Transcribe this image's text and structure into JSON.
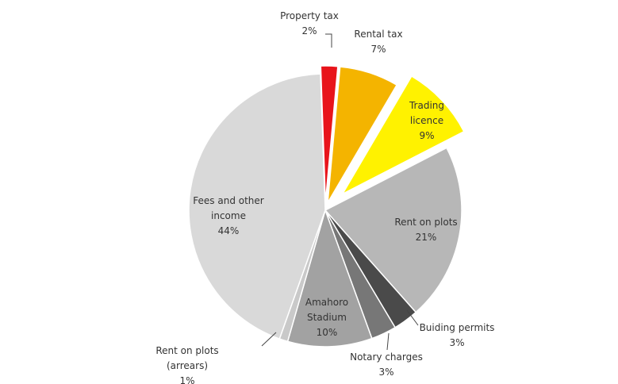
{
  "chart_data": {
    "type": "pie",
    "title": "",
    "start_angle_deg": -2,
    "slices": [
      {
        "name": "Property tax",
        "value": 2,
        "label_lines": [
          "Property tax",
          "2%"
        ],
        "color": "#e8141b",
        "explode": 10,
        "label_color": "#333333"
      },
      {
        "name": "Rental tax",
        "value": 7,
        "label_lines": [
          "Rental tax",
          "7%"
        ],
        "color": "#f4b400",
        "explode": 10,
        "label_color": "#333333"
      },
      {
        "name": "Trading licence",
        "value": 9,
        "label_lines": [
          "Trading",
          "licence",
          "9%"
        ],
        "color": "#fff200",
        "explode": 30,
        "label_color": "#333333"
      },
      {
        "name": "Rent on plots",
        "value": 21,
        "label_lines": [
          "Rent on plots",
          "21%"
        ],
        "color": "#b7b7b7",
        "explode": 0,
        "label_color": "#333333"
      },
      {
        "name": "Buiding permits",
        "value": 3,
        "label_lines": [
          "Buiding permits",
          "3%"
        ],
        "color": "#4a4a4a",
        "explode": 0,
        "label_color": "#333333"
      },
      {
        "name": "Notary charges",
        "value": 3,
        "label_lines": [
          "Notary charges",
          "3%"
        ],
        "color": "#777777",
        "explode": 0,
        "label_color": "#333333"
      },
      {
        "name": "Amahoro Stadium",
        "value": 10,
        "label_lines": [
          "Amahoro",
          "Stadium",
          "10%"
        ],
        "color": "#a2a2a2",
        "explode": 0,
        "label_color": "#333333"
      },
      {
        "name": "Rent on plots (arrears)",
        "value": 1,
        "label_lines": [
          "Rent on plots",
          "(arrears)",
          "1%"
        ],
        "color": "#c9c9c9",
        "explode": 0,
        "label_color": "#333333"
      },
      {
        "name": "Fees and other income",
        "value": 44,
        "label_lines": [
          "Fees and other",
          "income",
          "44%"
        ],
        "color": "#d9d9d9",
        "explode": 0,
        "label_color": "#333333"
      }
    ]
  }
}
